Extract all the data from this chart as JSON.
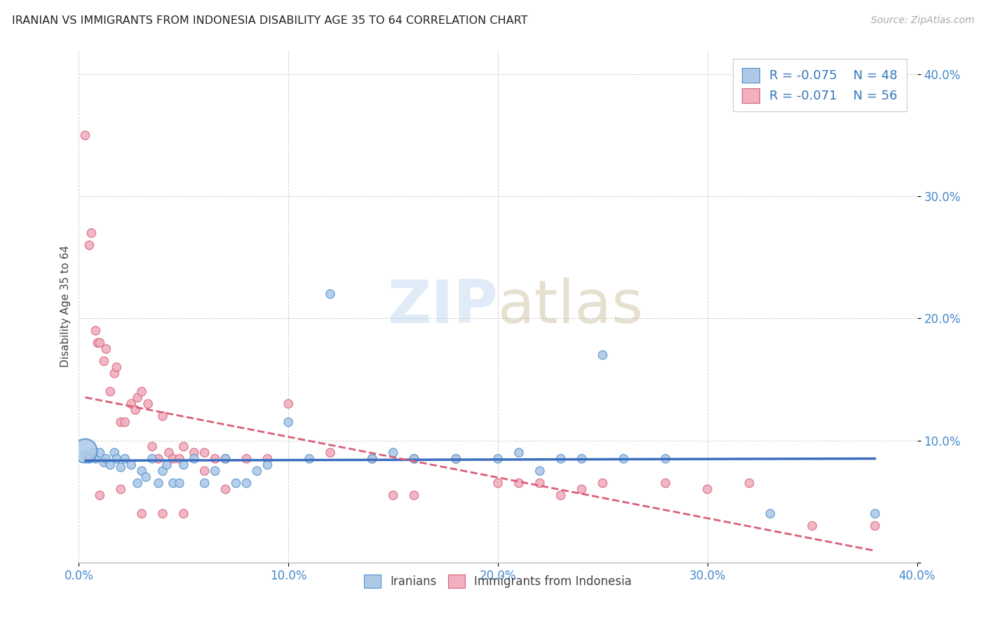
{
  "title": "IRANIAN VS IMMIGRANTS FROM INDONESIA DISABILITY AGE 35 TO 64 CORRELATION CHART",
  "source": "Source: ZipAtlas.com",
  "ylabel": "Disability Age 35 to 64",
  "xlim": [
    0.0,
    0.4
  ],
  "ylim": [
    0.0,
    0.42
  ],
  "xticks": [
    0.0,
    0.1,
    0.2,
    0.3,
    0.4
  ],
  "yticks": [
    0.0,
    0.1,
    0.2,
    0.3,
    0.4
  ],
  "xticklabels": [
    "0.0%",
    "10.0%",
    "20.0%",
    "30.0%",
    "40.0%"
  ],
  "yticklabels": [
    "",
    "10.0%",
    "20.0%",
    "30.0%",
    "40.0%"
  ],
  "color_iranians_fill": "#aec9e8",
  "color_iranians_edge": "#5090cc",
  "color_indonesia_fill": "#f0b0bf",
  "color_indonesia_edge": "#d9607a",
  "color_trend_blue": "#3b6dbf",
  "color_trend_pink": "#d9607a",
  "grid_color": "#cccccc",
  "background_color": "#ffffff",
  "iranians_x": [
    0.003,
    0.005,
    0.007,
    0.008,
    0.01,
    0.012,
    0.013,
    0.015,
    0.017,
    0.018,
    0.02,
    0.022,
    0.025,
    0.028,
    0.03,
    0.032,
    0.035,
    0.038,
    0.04,
    0.042,
    0.045,
    0.048,
    0.05,
    0.055,
    0.06,
    0.065,
    0.07,
    0.075,
    0.08,
    0.085,
    0.09,
    0.1,
    0.11,
    0.12,
    0.14,
    0.15,
    0.16,
    0.18,
    0.2,
    0.21,
    0.22,
    0.23,
    0.24,
    0.25,
    0.26,
    0.28,
    0.33,
    0.38
  ],
  "iranians_y": [
    0.088,
    0.085,
    0.09,
    0.085,
    0.09,
    0.082,
    0.085,
    0.08,
    0.09,
    0.085,
    0.078,
    0.085,
    0.08,
    0.065,
    0.075,
    0.07,
    0.085,
    0.065,
    0.075,
    0.08,
    0.065,
    0.065,
    0.08,
    0.085,
    0.065,
    0.075,
    0.085,
    0.065,
    0.065,
    0.075,
    0.08,
    0.115,
    0.085,
    0.22,
    0.085,
    0.09,
    0.085,
    0.085,
    0.085,
    0.09,
    0.075,
    0.085,
    0.085,
    0.17,
    0.085,
    0.085,
    0.04,
    0.04
  ],
  "iranians_size": [
    80,
    80,
    80,
    80,
    80,
    80,
    80,
    80,
    80,
    80,
    80,
    80,
    80,
    80,
    80,
    80,
    80,
    80,
    80,
    80,
    80,
    80,
    80,
    80,
    80,
    80,
    80,
    80,
    80,
    80,
    80,
    80,
    80,
    80,
    80,
    80,
    80,
    80,
    80,
    80,
    80,
    80,
    80,
    80,
    80,
    80,
    80,
    80
  ],
  "iranians_big_x": [
    0.003
  ],
  "iranians_big_y": [
    0.092
  ],
  "iranians_big_size": [
    600
  ],
  "indonesia_x": [
    0.003,
    0.005,
    0.006,
    0.008,
    0.009,
    0.01,
    0.012,
    0.013,
    0.015,
    0.017,
    0.018,
    0.02,
    0.022,
    0.025,
    0.027,
    0.028,
    0.03,
    0.033,
    0.035,
    0.038,
    0.04,
    0.043,
    0.045,
    0.048,
    0.05,
    0.055,
    0.06,
    0.065,
    0.07,
    0.08,
    0.09,
    0.1,
    0.12,
    0.14,
    0.16,
    0.18,
    0.2,
    0.22,
    0.28,
    0.35,
    0.38
  ],
  "indonesia_y": [
    0.35,
    0.26,
    0.27,
    0.19,
    0.18,
    0.18,
    0.165,
    0.175,
    0.14,
    0.155,
    0.16,
    0.115,
    0.115,
    0.13,
    0.125,
    0.135,
    0.14,
    0.13,
    0.095,
    0.085,
    0.12,
    0.09,
    0.085,
    0.085,
    0.095,
    0.09,
    0.09,
    0.085,
    0.085,
    0.085,
    0.085,
    0.13,
    0.09,
    0.085,
    0.085,
    0.085,
    0.065,
    0.065,
    0.065,
    0.03,
    0.03
  ],
  "indonesia_size": [
    80,
    80,
    80,
    80,
    80,
    80,
    80,
    80,
    80,
    80,
    80,
    80,
    80,
    80,
    80,
    80,
    80,
    80,
    80,
    80,
    80,
    80,
    80,
    80,
    80,
    80,
    80,
    80,
    80,
    80,
    80,
    80,
    80,
    80,
    80,
    80,
    80,
    80,
    80,
    80,
    80
  ],
  "indonesia_extra_x": [
    0.01,
    0.02,
    0.03,
    0.04,
    0.05,
    0.06,
    0.07,
    0.15,
    0.16,
    0.21,
    0.23,
    0.24,
    0.25,
    0.3,
    0.32
  ],
  "indonesia_extra_y": [
    0.055,
    0.06,
    0.04,
    0.04,
    0.04,
    0.075,
    0.06,
    0.055,
    0.055,
    0.065,
    0.055,
    0.06,
    0.065,
    0.06,
    0.065
  ],
  "indonesia_extra_size": [
    80,
    80,
    80,
    80,
    80,
    80,
    80,
    80,
    80,
    80,
    80,
    80,
    80,
    80,
    80
  ]
}
